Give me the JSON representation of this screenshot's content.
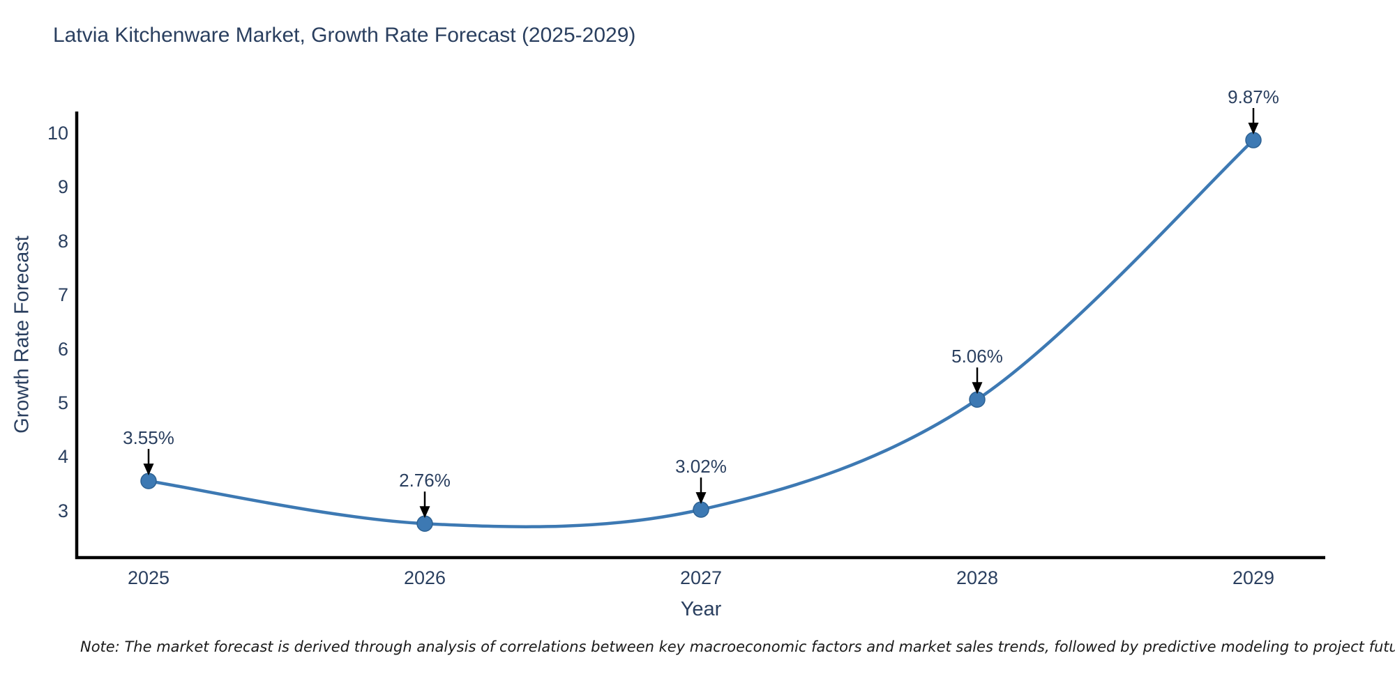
{
  "title": "Latvia Kitchenware Market, Growth Rate Forecast (2025-2029)",
  "note": "Note: The market forecast is derived through analysis of correlations between key macroeconomic factors and market sales trends, followed by predictive modeling to project future sales.",
  "chart_data": {
    "type": "line",
    "title": "Latvia Kitchenware Market, Growth Rate Forecast (2025-2029)",
    "xlabel": "Year",
    "ylabel": "Growth Rate Forecast",
    "categories": [
      "2025",
      "2026",
      "2027",
      "2028",
      "2029"
    ],
    "series": [
      {
        "name": "Growth Rate Forecast",
        "values": [
          3.55,
          2.76,
          3.02,
          5.06,
          9.87
        ]
      }
    ],
    "point_labels": [
      "3.55%",
      "2.76%",
      "3.02%",
      "5.06%",
      "9.87%"
    ],
    "yticks": [
      3,
      4,
      5,
      6,
      7,
      8,
      9,
      10
    ],
    "ylim": [
      2.13,
      10.4
    ],
    "line_shape": "spline",
    "grid": false,
    "legend": false,
    "annotations": "arrow-down-to-each-point"
  },
  "colors": {
    "line": "#3d79b3",
    "marker": "#3d79b3",
    "marker_edge": "#2e6293",
    "axis_line": "#000000",
    "arrow": "#000000",
    "chart_text": "#2a3f5f",
    "note_text": "#1a1a1a",
    "background": "#ffffff"
  }
}
